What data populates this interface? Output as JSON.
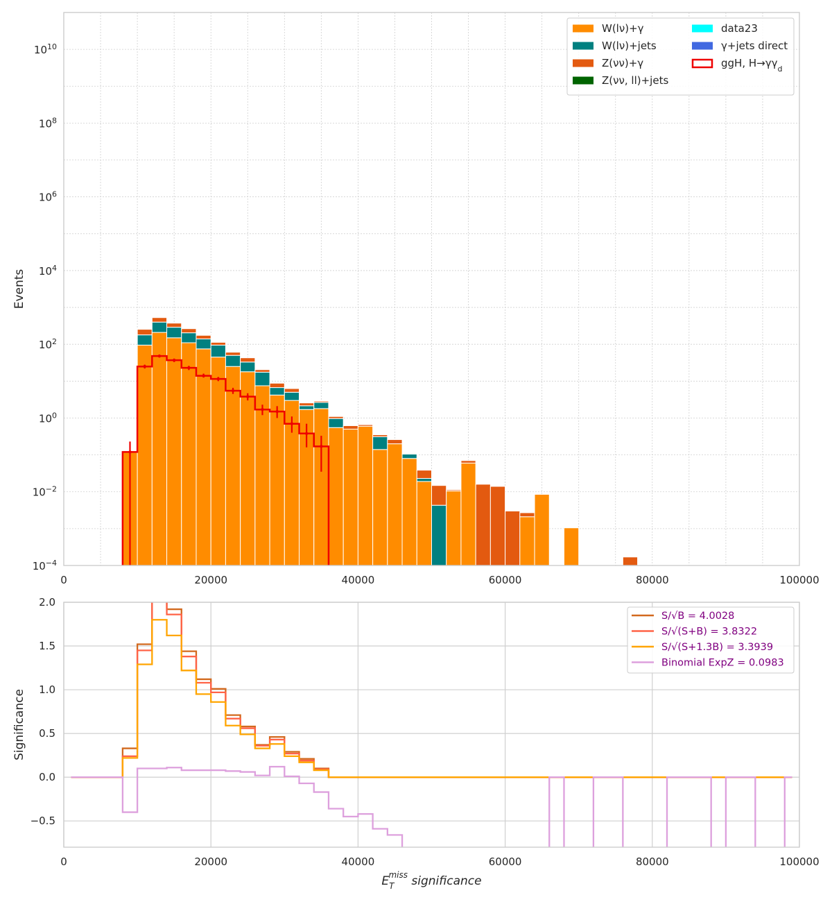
{
  "chart_data": [
    {
      "type": "bar",
      "stacked": true,
      "ylabel": "Events",
      "yscale": "log",
      "xlim": [
        0,
        100000
      ],
      "ylim": [
        0.0001,
        100000000000
      ],
      "grid": true,
      "legend_position": "top-right",
      "x_ticks": [
        "0",
        "20000",
        "40000",
        "60000",
        "80000",
        "100000"
      ],
      "y_ticks": [
        {
          "base": "10",
          "exp": "10",
          "value": 10000000000
        },
        {
          "base": "10",
          "exp": "8",
          "value": 100000000
        },
        {
          "base": "10",
          "exp": "6",
          "value": 1000000
        },
        {
          "base": "10",
          "exp": "4",
          "value": 10000
        },
        {
          "base": "10",
          "exp": "2",
          "value": 100
        },
        {
          "base": "10",
          "exp": "0",
          "value": 1
        },
        {
          "base": "10",
          "exp": "−2",
          "value": 0.01
        },
        {
          "base": "10",
          "exp": "−4",
          "value": 0.0001
        }
      ],
      "bin_edges": [
        8000,
        10000,
        12000,
        14000,
        16000,
        18000,
        20000,
        22000,
        24000,
        26000,
        28000,
        30000,
        32000,
        34000,
        36000,
        38000,
        40000,
        42000,
        44000,
        46000,
        48000,
        50000,
        52000,
        54000,
        56000,
        58000,
        60000,
        62000,
        64000,
        66000,
        68000,
        70000,
        72000,
        74000,
        76000,
        78000
      ],
      "series": [
        {
          "name": "W(lν)+γ",
          "color": "#ff8c00",
          "values": [
            0.12,
            95,
            210,
            150,
            110,
            75,
            45,
            25,
            18,
            7.5,
            4.2,
            3,
            1.7,
            1.8,
            0.55,
            0.5,
            0.6,
            0.14,
            0.2,
            0.08,
            0.019,
            0,
            0.0105,
            0.06,
            0,
            0,
            0,
            0.0021,
            0.0085,
            0,
            0.00105,
            0,
            0,
            0,
            0
          ]
        },
        {
          "name": "W(lν)+jets",
          "color": "#008080",
          "values": [
            0,
            85,
            190,
            140,
            95,
            65,
            50,
            25,
            15,
            10,
            2.5,
            2,
            0.45,
            0.85,
            0.42,
            0,
            0,
            0.17,
            0,
            0.025,
            0.004,
            0.0043,
            0,
            0,
            0,
            0,
            0,
            0,
            0,
            0,
            0,
            0,
            0,
            0,
            0
          ]
        },
        {
          "name": "Z(νν)+γ",
          "color": "#e35a10",
          "values": [
            0,
            75,
            130,
            85,
            60,
            35,
            18,
            11,
            10,
            3,
            2.1,
            1.3,
            0.42,
            0.22,
            0.13,
            0.12,
            0.06,
            0.04,
            0.06,
            0.005,
            0.0155,
            0.0105,
            0.0008,
            0.01,
            0.016,
            0.014,
            0.003,
            0.0006,
            0,
            0,
            0,
            0,
            0,
            0,
            0.00017
          ]
        },
        {
          "name": "Z(νν, ll)+jets",
          "color": "#006400",
          "values": [
            0,
            0,
            0,
            0,
            0,
            0,
            0,
            0,
            0,
            0,
            0,
            0,
            0,
            0,
            0,
            0,
            0,
            0,
            0,
            0,
            0,
            0,
            0,
            0,
            0,
            0,
            0,
            0,
            0,
            0,
            0,
            0,
            0,
            0,
            0
          ]
        }
      ],
      "legend": [
        {
          "label": "W(lν)+γ",
          "color": "#ff8c00",
          "style": "fill"
        },
        {
          "label": "W(lν)+jets",
          "color": "#008080",
          "style": "fill"
        },
        {
          "label": "Z(νν)+γ",
          "color": "#e35a10",
          "style": "fill"
        },
        {
          "label": "Z(νν, ll)+jets",
          "color": "#006400",
          "style": "fill"
        },
        {
          "label": "data23",
          "color": "#00ffff",
          "style": "fill"
        },
        {
          "label": "γ+jets direct",
          "color": "#4169e1",
          "style": "fill"
        },
        {
          "label": "ggH, H→γγ",
          "label_sub": "d",
          "color": "#ee0000",
          "style": "outline"
        }
      ],
      "signal": {
        "name": "ggH, H→γγd",
        "color": "#ee0000",
        "values": [
          0.12,
          25,
          48,
          37,
          23,
          14,
          11.5,
          5.5,
          3.8,
          1.7,
          1.5,
          0.7,
          0.38,
          0.17
        ],
        "err_low": [
          0.0001,
          22,
          44,
          33,
          20,
          12.5,
          10,
          4.5,
          3,
          1.2,
          1.0,
          0.4,
          0.16,
          0.035
        ],
        "err_high": [
          0.23,
          28,
          52,
          41,
          26,
          16,
          13,
          6.6,
          4.7,
          2.3,
          2.1,
          1.1,
          0.7,
          0.33
        ]
      }
    },
    {
      "type": "line",
      "step": true,
      "ylabel": "Significance",
      "xlim": [
        0,
        100000
      ],
      "ylim": [
        -0.8,
        2.0
      ],
      "grid": true,
      "legend_position": "top-right",
      "x_ticks": [
        "0",
        "20000",
        "40000",
        "60000",
        "80000",
        "100000"
      ],
      "y_ticks": [
        {
          "label": "2.0",
          "value": 2.0
        },
        {
          "label": "1.5",
          "value": 1.5
        },
        {
          "label": "1.0",
          "value": 1.0
        },
        {
          "label": "0.5",
          "value": 0.5
        },
        {
          "label": "0.0",
          "value": 0.0
        },
        {
          "label": "−0.5",
          "value": -0.5
        }
      ],
      "xlabel_main": "E",
      "xlabel_sub": "T",
      "xlabel_sup": "miss",
      "xlabel_rest": " significance",
      "bin_edges": [
        1000,
        8000,
        10000,
        12000,
        14000,
        16000,
        18000,
        20000,
        22000,
        24000,
        26000,
        28000,
        30000,
        32000,
        34000,
        36000,
        99000
      ],
      "series": [
        {
          "name": "S/√B = 4.0028",
          "color": "#d2691e",
          "values": [
            0,
            0.33,
            1.52,
            2.05,
            1.92,
            1.44,
            1.12,
            1.01,
            0.71,
            0.58,
            0.37,
            0.46,
            0.29,
            0.21,
            0.1,
            0
          ]
        },
        {
          "name": "S/√(S+B) = 3.8322",
          "color": "#ff6347",
          "values": [
            0,
            0.24,
            1.45,
            2.02,
            1.86,
            1.38,
            1.08,
            0.97,
            0.67,
            0.56,
            0.36,
            0.43,
            0.27,
            0.19,
            0.09,
            0
          ]
        },
        {
          "name": "S/√(S+1.3B) = 3.3939",
          "color": "#ffa500",
          "values": [
            0,
            0.22,
            1.29,
            1.8,
            1.62,
            1.22,
            0.95,
            0.86,
            0.59,
            0.49,
            0.33,
            0.38,
            0.24,
            0.17,
            0.08,
            0
          ]
        },
        {
          "name": "Binomial ExpZ = 0.0983",
          "color": "#dda0dd",
          "step_x": [
            1000,
            8000,
            8000,
            10000,
            10000,
            14000,
            14000,
            16000,
            16000,
            22000,
            22000,
            24000,
            24000,
            26000,
            26000,
            28000,
            28000,
            30000,
            30000,
            32000,
            32000,
            34000,
            34000,
            36000,
            36000,
            38000,
            38000,
            40000,
            40000,
            42000,
            42000,
            44000,
            44000,
            46000,
            46000,
            null,
            66000,
            66000,
            68000,
            68000,
            null,
            72000,
            72000,
            76000,
            76000,
            null,
            82000,
            82000,
            88000,
            88000,
            null,
            90000,
            90000,
            94000,
            94000,
            null,
            98000,
            98000,
            99000
          ],
          "step_y": [
            0,
            0,
            -0.4,
            -0.4,
            0.1,
            0.1,
            0.11,
            0.11,
            0.08,
            0.08,
            0.07,
            0.07,
            0.06,
            0.06,
            0.02,
            0.02,
            0.12,
            0.12,
            0.01,
            0.01,
            -0.07,
            -0.07,
            -0.17,
            -0.17,
            -0.36,
            -0.36,
            -0.45,
            -0.45,
            -0.42,
            -0.42,
            -0.59,
            -0.59,
            -0.66,
            -0.66,
            -0.82,
            null,
            -0.82,
            0,
            0,
            -0.82,
            null,
            -0.82,
            0,
            0,
            -0.82,
            null,
            -0.82,
            0,
            0,
            -0.82,
            null,
            -0.82,
            0,
            0,
            -0.82,
            null,
            -0.82,
            0,
            0
          ]
        }
      ]
    }
  ]
}
